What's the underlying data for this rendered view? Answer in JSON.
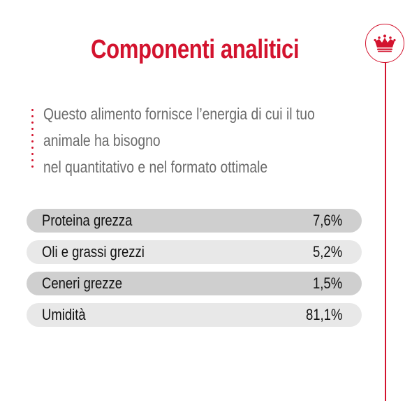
{
  "colors": {
    "brand_red": "#d3132e",
    "row_dark": "#cfcfcf",
    "row_light": "#e8e8e8",
    "intro_text": "#6b6b6b"
  },
  "header": {
    "title": "Componenti analitici",
    "logo_icon": "crown-icon"
  },
  "intro": {
    "lines": [
      "Questo alimento fornisce l’energia di cui il tuo",
      "animale ha bisogno",
      "nel quantitativo e nel formato ottimale"
    ]
  },
  "table": {
    "rows": [
      {
        "label": "Proteina grezza",
        "value": "7,6%",
        "shade": "dark"
      },
      {
        "label": "Oli e grassi grezzi",
        "value": "5,2%",
        "shade": "light"
      },
      {
        "label": "Ceneri grezze",
        "value": "1,5%",
        "shade": "dark"
      },
      {
        "label": "Umidità",
        "value": "81,1%",
        "shade": "light"
      }
    ]
  }
}
